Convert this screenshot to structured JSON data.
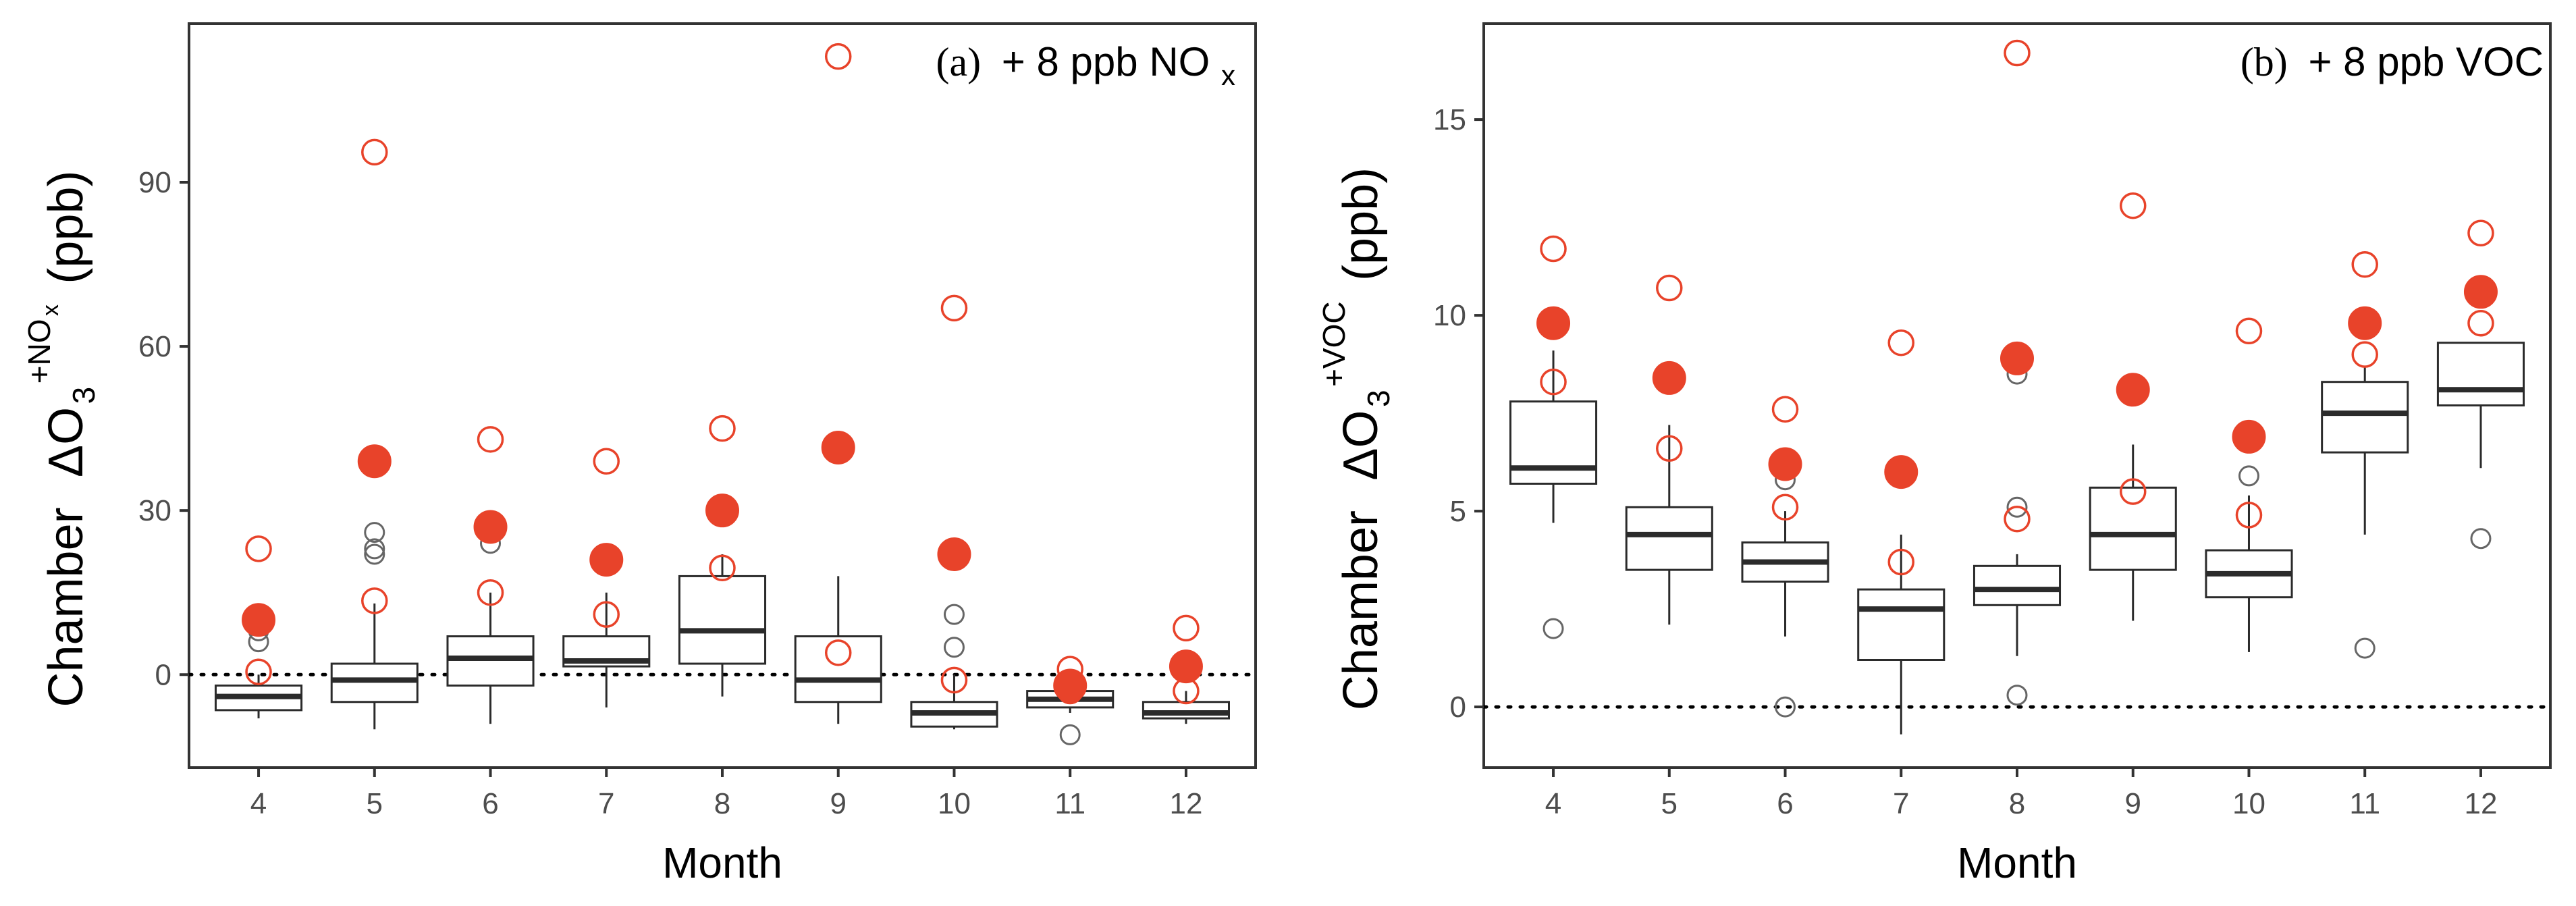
{
  "colors": {
    "accent": "#e8432a",
    "box": "#2b2b2b",
    "outlier": "#666666",
    "frame": "#333333",
    "text": "#000000",
    "tick_text": "#4d4d4d"
  },
  "chart_data": [
    {
      "type": "box",
      "title_tag": "(a)",
      "title_text": "+ 8 ppb NO",
      "title_sub": "x",
      "xlabel": "Month",
      "ylabel_prefix": "Chamber",
      "ylabel_delta": "ΔO",
      "ylabel_sub": "3",
      "ylabel_sup_main": "+NO",
      "ylabel_sup_sub": "x",
      "ylabel_unit": "(ppb)",
      "xlim": [
        3.4,
        12.6
      ],
      "ylim": [
        -17,
        119
      ],
      "yticks": [
        0,
        30,
        60,
        90
      ],
      "ytick_labels": [
        "0",
        "30",
        "60",
        "90"
      ],
      "categories": [
        "4",
        "5",
        "6",
        "7",
        "8",
        "9",
        "10",
        "11",
        "12"
      ],
      "reference_line": 0,
      "boxes": [
        {
          "month": 4,
          "whisker_low": -8,
          "q1": -6.5,
          "median": -4,
          "q3": -2,
          "whisker_high": 0,
          "outliers": [
            6,
            8
          ]
        },
        {
          "month": 5,
          "whisker_low": -10,
          "q1": -5,
          "median": -1,
          "q3": 2,
          "whisker_high": 13,
          "outliers": [
            22,
            23,
            26
          ]
        },
        {
          "month": 6,
          "whisker_low": -9,
          "q1": -2,
          "median": 3,
          "q3": 7,
          "whisker_high": 15,
          "outliers": [
            24
          ]
        },
        {
          "month": 7,
          "whisker_low": -6,
          "q1": 1.5,
          "median": 2.5,
          "q3": 7,
          "whisker_high": 15,
          "outliers": []
        },
        {
          "month": 8,
          "whisker_low": -4,
          "q1": 2,
          "median": 8,
          "q3": 18,
          "whisker_high": 22,
          "outliers": []
        },
        {
          "month": 9,
          "whisker_low": -9,
          "q1": -5,
          "median": -1,
          "q3": 7,
          "whisker_high": 18,
          "outliers": []
        },
        {
          "month": 10,
          "whisker_low": -10,
          "q1": -9.5,
          "median": -7,
          "q3": -5,
          "whisker_high": 0,
          "outliers": [
            5,
            11
          ]
        },
        {
          "month": 11,
          "whisker_low": -7,
          "q1": -6,
          "median": -4.5,
          "q3": -3,
          "whisker_high": 0,
          "outliers": [
            -11
          ]
        },
        {
          "month": 12,
          "whisker_low": -9,
          "q1": -8,
          "median": -7,
          "q3": -5,
          "whisker_high": -3,
          "outliers": []
        }
      ],
      "filled_points": [
        {
          "month": 4,
          "value": 10
        },
        {
          "month": 5,
          "value": 39
        },
        {
          "month": 6,
          "value": 27
        },
        {
          "month": 7,
          "value": 21
        },
        {
          "month": 8,
          "value": 30
        },
        {
          "month": 9,
          "value": 41.5
        },
        {
          "month": 10,
          "value": 22
        },
        {
          "month": 11,
          "value": -2
        },
        {
          "month": 12,
          "value": 1.5
        }
      ],
      "open_points": [
        {
          "month": 4,
          "values": [
            23,
            0.5
          ]
        },
        {
          "month": 5,
          "values": [
            95.5,
            13.5
          ]
        },
        {
          "month": 6,
          "values": [
            43,
            15
          ]
        },
        {
          "month": 7,
          "values": [
            39,
            11
          ]
        },
        {
          "month": 8,
          "values": [
            45,
            19.5
          ]
        },
        {
          "month": 9,
          "values": [
            113,
            4
          ]
        },
        {
          "month": 10,
          "values": [
            67,
            -1
          ]
        },
        {
          "month": 11,
          "values": [
            1,
            -3
          ]
        },
        {
          "month": 12,
          "values": [
            8.5,
            -3
          ]
        }
      ]
    },
    {
      "type": "box",
      "title_tag": "(b)",
      "title_text": "+ 8 ppb VOC",
      "title_sub": "",
      "xlabel": "Month",
      "ylabel_prefix": "Chamber",
      "ylabel_delta": "ΔO",
      "ylabel_sub": "3",
      "ylabel_sup_main": "+VOC",
      "ylabel_sup_sub": "",
      "ylabel_unit": "(ppb)",
      "xlim": [
        3.4,
        12.6
      ],
      "ylim": [
        -1.55,
        17.45
      ],
      "yticks": [
        0,
        5,
        10,
        15
      ],
      "ytick_labels": [
        "0",
        "5",
        "10",
        "15"
      ],
      "categories": [
        "4",
        "5",
        "6",
        "7",
        "8",
        "9",
        "10",
        "11",
        "12"
      ],
      "reference_line": 0,
      "boxes": [
        {
          "month": 4,
          "whisker_low": 4.7,
          "q1": 5.7,
          "median": 6.1,
          "q3": 7.8,
          "whisker_high": 9.1,
          "outliers": [
            2.0
          ]
        },
        {
          "month": 5,
          "whisker_low": 2.1,
          "q1": 3.5,
          "median": 4.4,
          "q3": 5.1,
          "whisker_high": 7.2,
          "outliers": []
        },
        {
          "month": 6,
          "whisker_low": 1.8,
          "q1": 3.2,
          "median": 3.7,
          "q3": 4.2,
          "whisker_high": 5.0,
          "outliers": [
            5.8,
            0.0
          ]
        },
        {
          "month": 7,
          "whisker_low": -0.7,
          "q1": 1.2,
          "median": 2.5,
          "q3": 3.0,
          "whisker_high": 4.4,
          "outliers": []
        },
        {
          "month": 8,
          "whisker_low": 1.3,
          "q1": 2.6,
          "median": 3.0,
          "q3": 3.6,
          "whisker_high": 3.9,
          "outliers": [
            8.5,
            5.1,
            0.3
          ]
        },
        {
          "month": 9,
          "whisker_low": 2.2,
          "q1": 3.5,
          "median": 4.4,
          "q3": 5.6,
          "whisker_high": 6.7,
          "outliers": []
        },
        {
          "month": 10,
          "whisker_low": 1.4,
          "q1": 2.8,
          "median": 3.4,
          "q3": 4.0,
          "whisker_high": 5.4,
          "outliers": [
            5.9
          ]
        },
        {
          "month": 11,
          "whisker_low": 4.4,
          "q1": 6.5,
          "median": 7.5,
          "q3": 8.3,
          "whisker_high": 8.7,
          "outliers": [
            1.5
          ]
        },
        {
          "month": 12,
          "whisker_low": 6.1,
          "q1": 7.7,
          "median": 8.1,
          "q3": 9.3,
          "whisker_high": 9.3,
          "outliers": [
            4.3
          ]
        }
      ],
      "filled_points": [
        {
          "month": 4,
          "value": 9.8
        },
        {
          "month": 5,
          "value": 8.4
        },
        {
          "month": 6,
          "value": 6.2
        },
        {
          "month": 7,
          "value": 6.0
        },
        {
          "month": 8,
          "value": 8.9
        },
        {
          "month": 9,
          "value": 8.1
        },
        {
          "month": 10,
          "value": 6.9
        },
        {
          "month": 11,
          "value": 9.8
        },
        {
          "month": 12,
          "value": 10.6
        }
      ],
      "open_points": [
        {
          "month": 4,
          "values": [
            11.7,
            8.3
          ]
        },
        {
          "month": 5,
          "values": [
            10.7,
            6.6
          ]
        },
        {
          "month": 6,
          "values": [
            7.6,
            5.1
          ]
        },
        {
          "month": 7,
          "values": [
            9.3,
            3.7
          ]
        },
        {
          "month": 8,
          "values": [
            16.7,
            4.8
          ]
        },
        {
          "month": 9,
          "values": [
            12.8,
            5.5
          ]
        },
        {
          "month": 10,
          "values": [
            9.6,
            4.9
          ]
        },
        {
          "month": 11,
          "values": [
            11.3,
            9.0
          ]
        },
        {
          "month": 12,
          "values": [
            12.1,
            9.8
          ]
        }
      ]
    }
  ]
}
